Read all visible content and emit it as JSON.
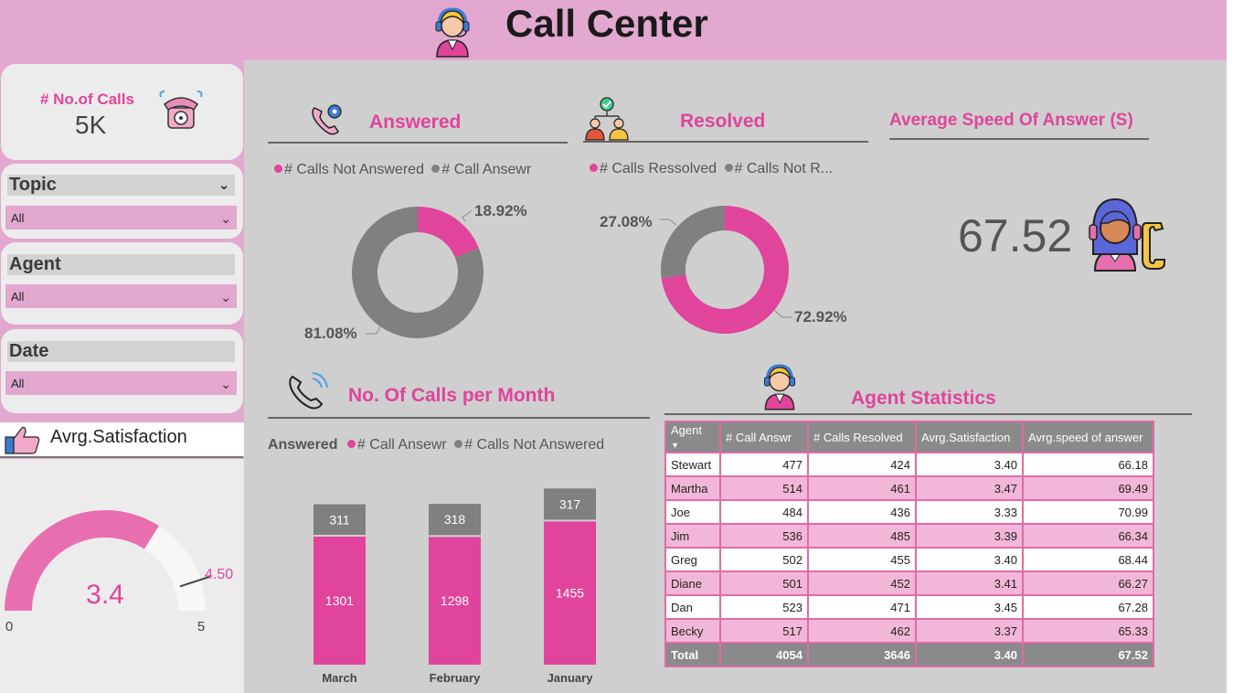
{
  "header": {
    "title": "Call Center"
  },
  "calls_card": {
    "label": "# No.of Calls",
    "value": "5K"
  },
  "filters": [
    {
      "label": "Topic",
      "selected": "All"
    },
    {
      "label": "Agent",
      "selected": "All"
    },
    {
      "label": "Date",
      "selected": "All"
    }
  ],
  "satisfaction": {
    "title": "Avrg.Satisfaction",
    "value": "3.4",
    "value_num": 3.4,
    "target": "4.50",
    "target_num": 4.5,
    "min": "0",
    "max": "5",
    "max_num": 5
  },
  "answered": {
    "title": "Answered",
    "legend": [
      "# Calls Not Answered",
      "# Call Ansewr"
    ],
    "slices": [
      {
        "label": "18.92%",
        "value": 18.92,
        "color": "#e0449b"
      },
      {
        "label": "81.08%",
        "value": 81.08,
        "color": "#808080"
      }
    ]
  },
  "resolved": {
    "title": "Resolved",
    "legend": [
      "# Calls Ressolved",
      "# Calls Not R..."
    ],
    "slices": [
      {
        "label": "72.92%",
        "value": 72.92,
        "color": "#e0449b"
      },
      {
        "label": "27.08%",
        "value": 27.08,
        "color": "#808080"
      }
    ]
  },
  "speed": {
    "title": "Average Speed Of Answer (S)",
    "value": "67.52"
  },
  "monthly": {
    "title": "No. Of Calls per Month",
    "legend_title": "Answered",
    "legend": [
      "# Call Ansewr",
      "# Calls Not Answered"
    ],
    "colors": {
      "answered": "#e0449b",
      "not_answered": "#808080"
    }
  },
  "chart_data": {
    "type": "bar",
    "categories": [
      "March",
      "February",
      "January"
    ],
    "series": [
      {
        "name": "# Call Ansewr",
        "values": [
          1301,
          1298,
          1455
        ]
      },
      {
        "name": "# Calls Not Answered",
        "values": [
          311,
          318,
          317
        ]
      }
    ]
  },
  "agent_stats": {
    "title": "Agent Statistics",
    "columns": [
      "Agent",
      "# Call Answr",
      "# Calls Resolved",
      "Avrg.Satisfaction",
      "Avrg.speed of answer"
    ],
    "rows": [
      [
        "Stewart",
        "477",
        "424",
        "3.40",
        "66.18"
      ],
      [
        "Martha",
        "514",
        "461",
        "3.47",
        "69.49"
      ],
      [
        "Joe",
        "484",
        "436",
        "3.33",
        "70.99"
      ],
      [
        "Jim",
        "536",
        "485",
        "3.39",
        "66.34"
      ],
      [
        "Greg",
        "502",
        "455",
        "3.40",
        "68.44"
      ],
      [
        "Diane",
        "501",
        "452",
        "3.41",
        "66.27"
      ],
      [
        "Dan",
        "523",
        "471",
        "3.45",
        "67.28"
      ],
      [
        "Becky",
        "517",
        "462",
        "3.37",
        "65.33"
      ]
    ],
    "total": [
      "Total",
      "4054",
      "3646",
      "3.40",
      "67.52"
    ]
  },
  "icons": {
    "header": "agent-headset-icon",
    "calls": "telephone-icon",
    "answered": "phone-gear-icon",
    "resolved": "team-check-icon",
    "speed": "agent-phone-icon",
    "monthly": "phone-ringing-icon",
    "agent_stats": "agent-headset-icon",
    "satisfaction": "thumbs-up-icon"
  }
}
